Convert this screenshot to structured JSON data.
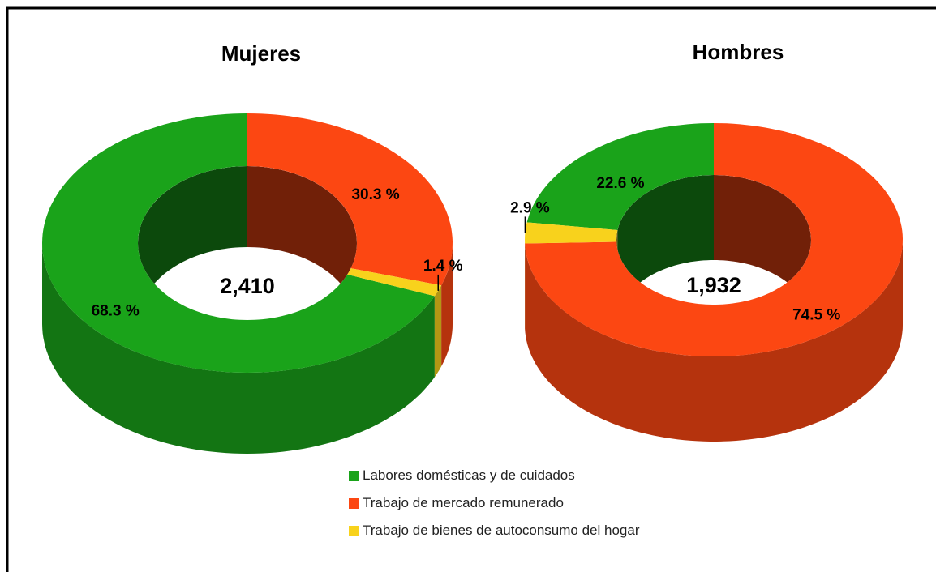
{
  "chart_data": [
    {
      "type": "donut",
      "title": "Mujeres",
      "center_label": "2,410",
      "categories": [
        "Labores domésticas y de cuidados",
        "Trabajo de mercado remunerado",
        "Trabajo de bienes de autoconsumo del hogar"
      ],
      "values": [
        68.3,
        30.3,
        1.4
      ],
      "value_labels": [
        "68.3 %",
        "30.3 %",
        "1.4 %"
      ],
      "colors": [
        "#1aa31a",
        "#fc4712",
        "#f8d21c"
      ]
    },
    {
      "type": "donut",
      "title": "Hombres",
      "center_label": "1,932",
      "categories": [
        "Labores domésticas y de cuidados",
        "Trabajo de mercado remunerado",
        "Trabajo de bienes de autoconsumo del hogar"
      ],
      "values": [
        22.6,
        74.5,
        2.9
      ],
      "value_labels": [
        "22.6 %",
        "74.5 %",
        "2.9 %"
      ],
      "colors": [
        "#1aa31a",
        "#fc4712",
        "#f8d21c"
      ]
    }
  ]
}
